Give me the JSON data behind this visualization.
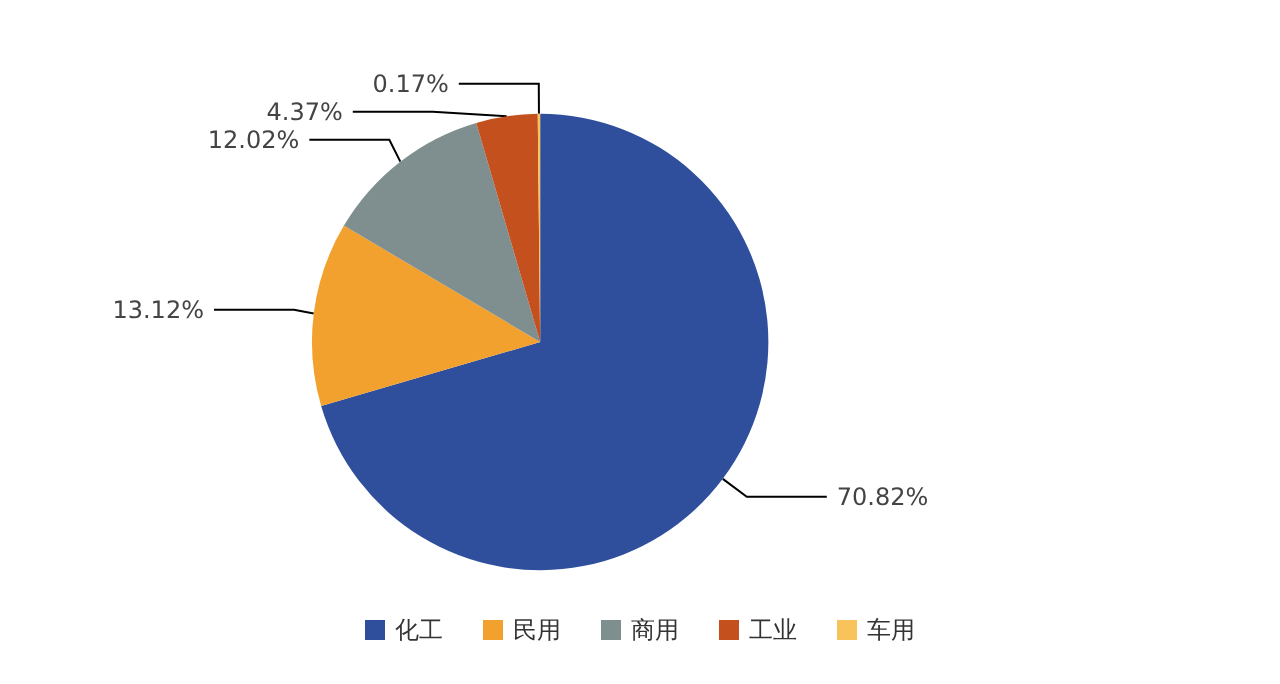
{
  "chart_data": {
    "type": "pie",
    "categories": [
      "化工",
      "民用",
      "商用",
      "工业",
      "车用"
    ],
    "values": [
      70.82,
      13.12,
      12.02,
      4.37,
      0.17
    ],
    "colors": [
      "#2f4f9c",
      "#f2a12e",
      "#7f8f8f",
      "#c4501e",
      "#f7c35a"
    ],
    "value_labels": [
      "70.82%",
      "13.12%",
      "12.02%",
      "4.37%",
      "0.17%"
    ],
    "legend": "bottom"
  }
}
